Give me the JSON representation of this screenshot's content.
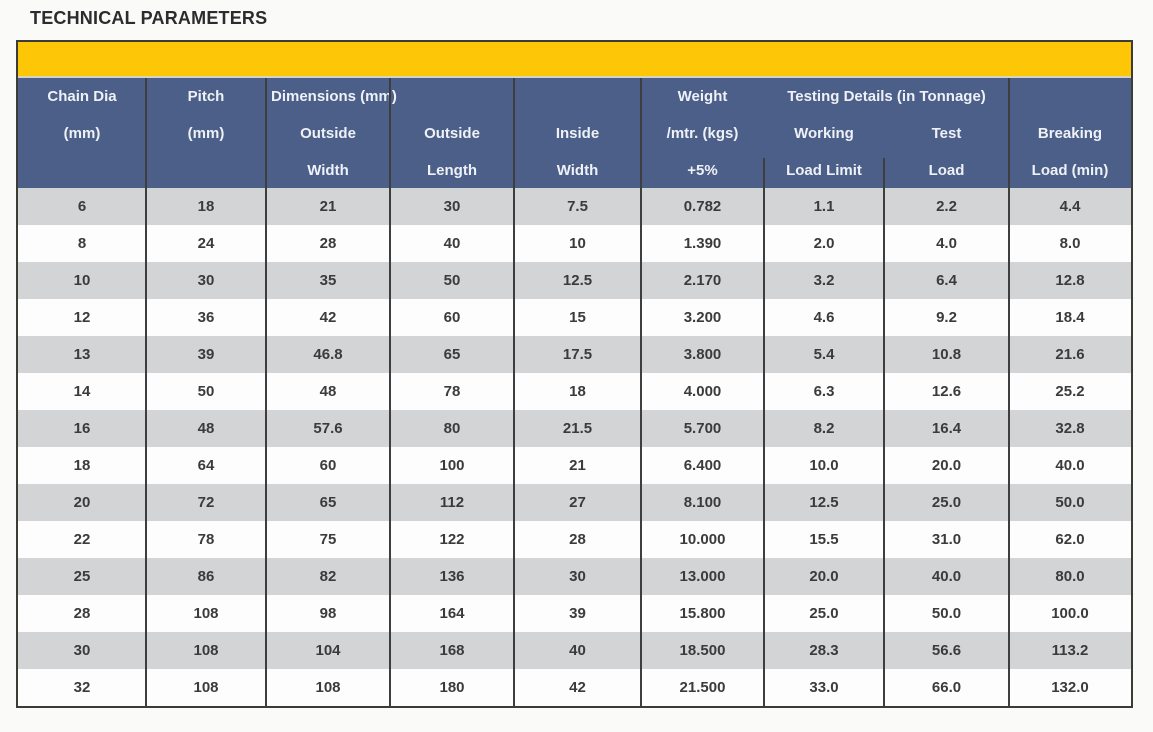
{
  "page": {
    "title": "TECHNICAL PARAMETERS"
  },
  "colors": {
    "banner_yellow": "#FDC708",
    "header_blue": "#4C5F88",
    "row_stripe_gray": "#D3D4D6",
    "border_dark": "#3d3b35"
  },
  "table": {
    "header": {
      "chain_dia": {
        "l1": "Chain Dia",
        "l2": "(mm)"
      },
      "pitch": {
        "l1": "Pitch",
        "l2": "(mm)"
      },
      "dimensions_group": "Dimensions (mm)",
      "outside_width": {
        "l2": "Outside",
        "l3": "Width"
      },
      "outside_length": {
        "l2": "Outside",
        "l3": "Length"
      },
      "inside_width": {
        "l2": "Inside",
        "l3": "Width"
      },
      "weight": {
        "l1": "Weight",
        "l2": "/mtr. (kgs)",
        "l3": "+5%"
      },
      "testing_group": "Testing Details (in Tonnage)",
      "working_load": {
        "l2": "Working",
        "l3": "Load Limit"
      },
      "test_load": {
        "l2": "Test",
        "l3": "Load"
      },
      "breaking_load": {
        "l2": "Breaking",
        "l3": "Load (min)"
      }
    },
    "rows": [
      [
        "6",
        "18",
        "21",
        "30",
        "7.5",
        "0.782",
        "1.1",
        "2.2",
        "4.4"
      ],
      [
        "8",
        "24",
        "28",
        "40",
        "10",
        "1.390",
        "2.0",
        "4.0",
        "8.0"
      ],
      [
        "10",
        "30",
        "35",
        "50",
        "12.5",
        "2.170",
        "3.2",
        "6.4",
        "12.8"
      ],
      [
        "12",
        "36",
        "42",
        "60",
        "15",
        "3.200",
        "4.6",
        "9.2",
        "18.4"
      ],
      [
        "13",
        "39",
        "46.8",
        "65",
        "17.5",
        "3.800",
        "5.4",
        "10.8",
        "21.6"
      ],
      [
        "14",
        "50",
        "48",
        "78",
        "18",
        "4.000",
        "6.3",
        "12.6",
        "25.2"
      ],
      [
        "16",
        "48",
        "57.6",
        "80",
        "21.5",
        "5.700",
        "8.2",
        "16.4",
        "32.8"
      ],
      [
        "18",
        "64",
        "60",
        "100",
        "21",
        "6.400",
        "10.0",
        "20.0",
        "40.0"
      ],
      [
        "20",
        "72",
        "65",
        "112",
        "27",
        "8.100",
        "12.5",
        "25.0",
        "50.0"
      ],
      [
        "22",
        "78",
        "75",
        "122",
        "28",
        "10.000",
        "15.5",
        "31.0",
        "62.0"
      ],
      [
        "25",
        "86",
        "82",
        "136",
        "30",
        "13.000",
        "20.0",
        "40.0",
        "80.0"
      ],
      [
        "28",
        "108",
        "98",
        "164",
        "39",
        "15.800",
        "25.0",
        "50.0",
        "100.0"
      ],
      [
        "30",
        "108",
        "104",
        "168",
        "40",
        "18.500",
        "28.3",
        "56.6",
        "113.2"
      ],
      [
        "32",
        "108",
        "108",
        "180",
        "42",
        "21.500",
        "33.0",
        "66.0",
        "132.0"
      ]
    ]
  }
}
